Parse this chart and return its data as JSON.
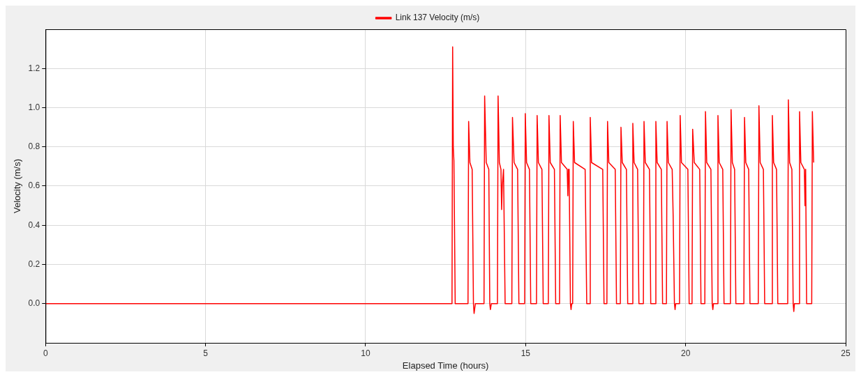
{
  "chart_data": {
    "type": "line",
    "xlabel": "Elapsed Time (hours)",
    "ylabel": "Velocity (m/s)",
    "legend": "top",
    "grid": true,
    "marker": "none",
    "line_style": "solid",
    "xlim": [
      0,
      25
    ],
    "xticks": [
      0,
      5,
      10,
      15,
      20,
      25
    ],
    "ylim": [
      -0.2,
      1.4
    ],
    "yticks": [
      {
        "value": 0,
        "label": "0.0"
      },
      0.2,
      0.4,
      0.6,
      0.8,
      {
        "value": 1,
        "label": "1.0"
      },
      1.2
    ],
    "series": [
      {
        "name": "Link 137 Velocity (m/s)",
        "color": "#ff0000",
        "x": [
          0,
          12.7,
          12.72,
          12.74,
          12.76,
          12.8,
          13.2,
          13.22,
          13.26,
          13.33,
          13.37,
          13.39,
          13.43,
          13.7,
          13.72,
          13.77,
          13.85,
          13.88,
          13.9,
          13.93,
          14.12,
          14.14,
          14.18,
          14.23,
          14.25,
          14.27,
          14.31,
          14.36,
          14.57,
          14.59,
          14.64,
          14.75,
          14.79,
          14.97,
          14.99,
          15.03,
          15.12,
          15.16,
          15.34,
          15.36,
          15.4,
          15.51,
          15.55,
          15.71,
          15.73,
          15.77,
          15.9,
          15.94,
          16.06,
          16.08,
          16.12,
          16.3,
          16.32,
          16.34,
          16.36,
          16.4,
          16.42,
          16.44,
          16.47,
          16.49,
          16.53,
          16.86,
          16.91,
          17.0,
          17.02,
          17.06,
          17.41,
          17.45,
          17.54,
          17.56,
          17.6,
          17.8,
          17.84,
          17.96,
          17.98,
          18.02,
          18.15,
          18.19,
          18.33,
          18.35,
          18.39,
          18.5,
          18.54,
          18.68,
          18.7,
          18.74,
          18.87,
          18.91,
          19.05,
          19.07,
          19.11,
          19.24,
          19.28,
          19.4,
          19.42,
          19.46,
          19.58,
          19.61,
          19.65,
          19.67,
          19.69,
          19.81,
          19.83,
          19.87,
          20.07,
          20.11,
          20.2,
          20.22,
          20.27,
          20.44,
          20.48,
          20.6,
          20.62,
          20.66,
          20.79,
          20.83,
          20.85,
          20.87,
          20.99,
          21.01,
          21.05,
          21.16,
          21.2,
          21.4,
          21.42,
          21.46,
          21.53,
          21.57,
          21.82,
          21.84,
          21.88,
          21.97,
          22.01,
          22.27,
          22.29,
          22.33,
          22.43,
          22.47,
          22.69,
          22.71,
          22.75,
          22.84,
          22.88,
          23.19,
          23.21,
          23.25,
          23.32,
          23.36,
          23.38,
          23.4,
          23.54,
          23.56,
          23.6,
          23.71,
          23.73,
          23.75,
          23.78,
          23.82,
          23.94,
          23.96,
          24.0
        ],
        "values": [
          0,
          0,
          1.31,
          0.8,
          0.73,
          0,
          0,
          0.93,
          0.72,
          0.685,
          0,
          -0.05,
          0,
          0,
          1.06,
          0.72,
          0.685,
          0,
          -0.03,
          0,
          0,
          1.06,
          0.72,
          0.685,
          0.48,
          0.6,
          0.685,
          0,
          0,
          0.95,
          0.72,
          0.685,
          0,
          0,
          0.97,
          0.72,
          0.685,
          0,
          0,
          0.96,
          0.72,
          0.685,
          0,
          0,
          0.96,
          0.72,
          0.685,
          0,
          0,
          0.96,
          0.72,
          0.685,
          0.55,
          0.685,
          0.685,
          0,
          -0.03,
          0,
          0,
          0.93,
          0.72,
          0.685,
          0,
          0,
          0.95,
          0.72,
          0.685,
          0,
          0,
          0.93,
          0.72,
          0.685,
          0,
          0,
          0.9,
          0.72,
          0.685,
          0,
          0,
          0.92,
          0.72,
          0.685,
          0,
          0,
          0.93,
          0.72,
          0.685,
          0,
          0,
          0.93,
          0.72,
          0.685,
          0,
          0,
          0.93,
          0.72,
          0.685,
          0.45,
          0,
          -0.03,
          0,
          0,
          0.96,
          0.72,
          0.685,
          0,
          0,
          0.89,
          0.72,
          0.685,
          0,
          0,
          0.98,
          0.72,
          0.685,
          0,
          -0.03,
          0,
          0,
          0.96,
          0.72,
          0.685,
          0,
          0,
          0.99,
          0.72,
          0.685,
          0,
          0,
          0.95,
          0.72,
          0.685,
          0,
          0,
          1.01,
          0.72,
          0.685,
          0,
          0,
          0.96,
          0.72,
          0.685,
          0,
          0,
          1.04,
          0.72,
          0.685,
          0,
          -0.04,
          0,
          0,
          0.98,
          0.72,
          0.685,
          0.5,
          0.685,
          0,
          0,
          0,
          0.98,
          0.72
        ]
      }
    ]
  }
}
